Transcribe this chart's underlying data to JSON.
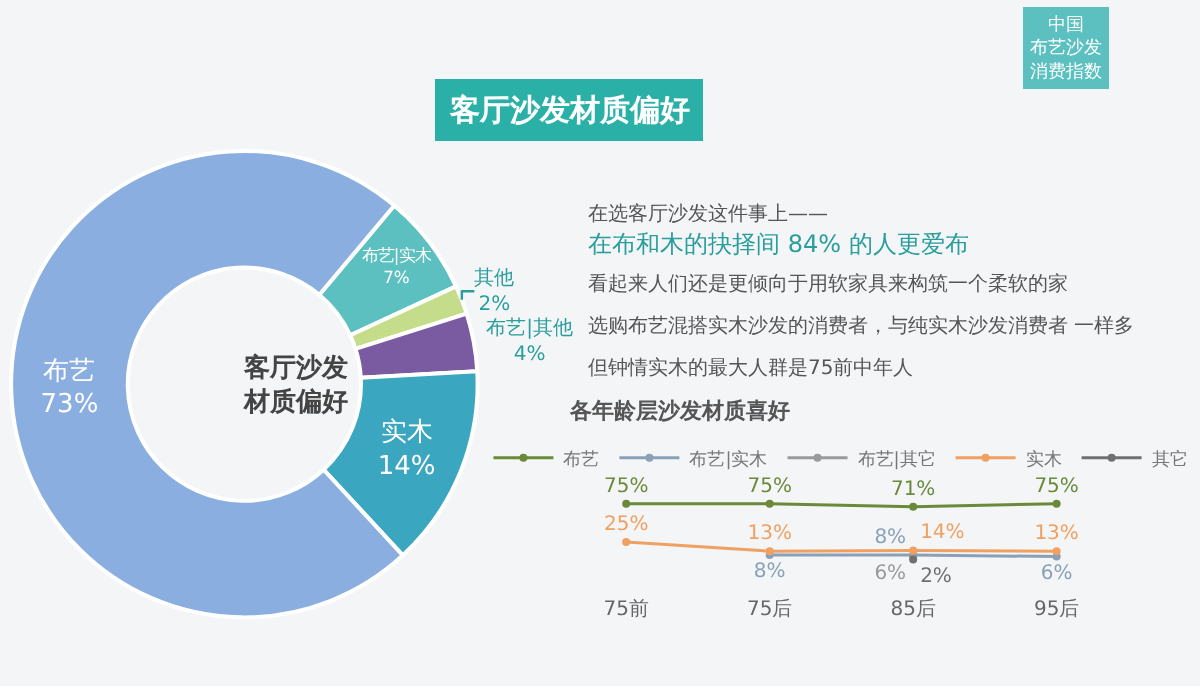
{
  "chart_data": [
    {
      "type": "donut",
      "title": "客厅沙发材质偏好",
      "categories": [
        "布艺|实木",
        "其他",
        "布艺|其他",
        "实木",
        "布艺"
      ],
      "values": [
        7,
        2,
        4,
        14,
        73
      ],
      "colors": [
        "#5cc0c0",
        "#c5dc8a",
        "#7a5aa0",
        "#3ba6c0",
        "#8aaee0"
      ],
      "value_labels": [
        "7%",
        "2%",
        "4%",
        "14%",
        "73%"
      ],
      "annotations": [
        "客厅沙发材质偏好"
      ]
    },
    {
      "type": "other",
      "annotations": [
        "在选客厅沙发这件事上——",
        "在布和木的抉择间 84% 的人更爱布",
        "看起来人们还是更倾向于用软家具来构筑一个柔软的家",
        "选购布艺混搭实木沙发的消费者，与纯实木沙发消费者 一样多",
        "但钟情实木的最大人群是75前中年人",
        "中国布艺沙发消费指数"
      ]
    },
    {
      "type": "line",
      "title": "各年龄层沙发材质喜好",
      "categories": [
        "75前",
        "75后",
        "85后",
        "95后"
      ],
      "legend": "top",
      "marker": "circle",
      "series": [
        {
          "name": "布艺",
          "color": "#6a8a3a",
          "values": [
            75,
            75,
            71,
            75
          ],
          "value_labels": [
            "75%",
            "75%",
            "71%",
            "75%"
          ]
        },
        {
          "name": "布艺|实木",
          "color": "#8aa0b8",
          "values": [
            null,
            8,
            8,
            6
          ],
          "value_labels": [
            null,
            "8%",
            "8%",
            "6%"
          ]
        },
        {
          "name": "布艺|其它",
          "color": "#9a9a9a",
          "values": [
            null,
            null,
            6,
            null
          ],
          "value_labels": [
            null,
            null,
            "6%",
            null
          ]
        },
        {
          "name": "实木",
          "color": "#f0a060",
          "values": [
            25,
            13,
            14,
            13
          ],
          "value_labels": [
            "25%",
            "13%",
            "14%",
            "13%"
          ]
        },
        {
          "name": "其它",
          "color": "#707070",
          "values": [
            null,
            null,
            2,
            null
          ],
          "value_labels": [
            null,
            null,
            "2%",
            null
          ]
        }
      ]
    }
  ]
}
